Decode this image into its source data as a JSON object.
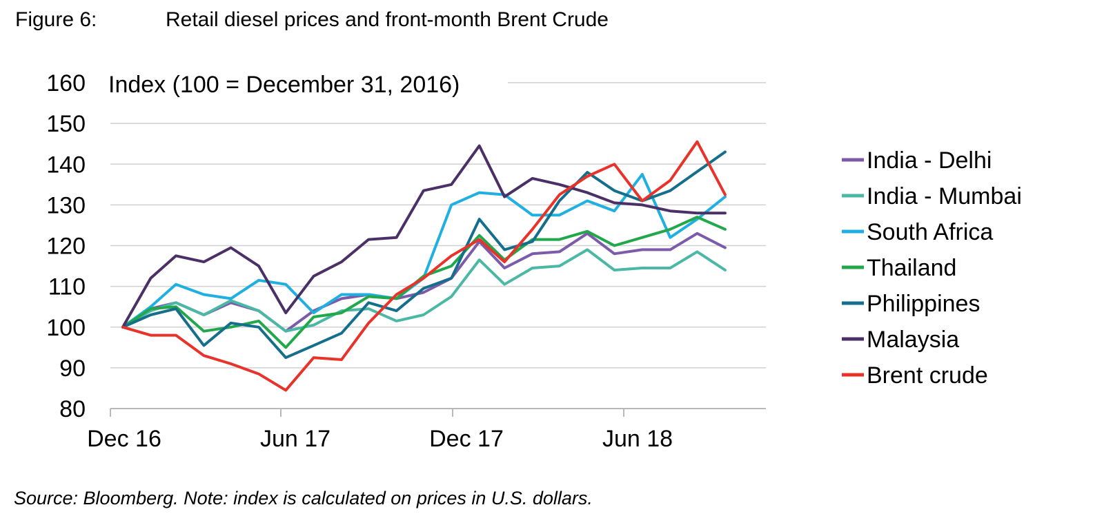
{
  "figure_label": "Figure 6:",
  "figure_title": "Retail diesel prices and front-month Brent Crude",
  "source_note": "Source: Bloomberg. Note: index is calculated on prices in U.S. dollars.",
  "chart_data": {
    "type": "line",
    "title": "Retail diesel prices and front-month Brent Crude",
    "ylabel": "Index (100 = December 31, 2016)",
    "xlabel": "",
    "ylim": [
      80,
      160
    ],
    "yticks": [
      80,
      90,
      100,
      110,
      120,
      130,
      140,
      150,
      160
    ],
    "xtick_labels": [
      "Dec 16",
      "Jun 17",
      "Dec 17",
      "Jun 18"
    ],
    "xtick_positions": [
      "2016-12-31",
      "2017-06-30",
      "2017-12-31",
      "2018-06-30"
    ],
    "x": [
      "2016-12-31",
      "2017-01-31",
      "2017-02-28",
      "2017-03-31",
      "2017-04-30",
      "2017-05-31",
      "2017-06-30",
      "2017-07-31",
      "2017-08-31",
      "2017-09-30",
      "2017-10-31",
      "2017-11-30",
      "2017-12-31",
      "2018-01-31",
      "2018-02-28",
      "2018-03-31",
      "2018-04-30",
      "2018-05-31",
      "2018-06-30",
      "2018-07-31",
      "2018-08-31",
      "2018-09-30",
      "2018-10-31",
      "2018-11-30"
    ],
    "grid": true,
    "legend_position": "right",
    "series": [
      {
        "name": "India - Delhi",
        "color": "#7B5BAA",
        "values": [
          100,
          104.5,
          106,
          103,
          106,
          104,
          99,
          104,
          107,
          108,
          107,
          108.5,
          112,
          121,
          114.5,
          118,
          118.5,
          123,
          118,
          119,
          119,
          123,
          119.5,
          null
        ]
      },
      {
        "name": "India - Mumbai",
        "color": "#4BB8A6",
        "values": [
          100,
          104,
          106,
          103,
          106.5,
          104,
          99,
          100.5,
          104,
          104.5,
          101.5,
          103,
          107.5,
          116.5,
          110.5,
          114.5,
          115,
          119,
          114,
          114.5,
          114.5,
          118.5,
          114,
          null
        ]
      },
      {
        "name": "South Africa",
        "color": "#1FAFE0",
        "values": [
          100,
          105,
          110.5,
          108,
          107,
          111.5,
          110.5,
          103.5,
          108,
          108,
          107,
          112,
          130,
          133,
          132.5,
          127.5,
          127.5,
          131,
          128.5,
          137.5,
          122,
          126.5,
          132,
          null
        ]
      },
      {
        "name": "Thailand",
        "color": "#22A84B",
        "values": [
          100,
          104.5,
          105,
          99,
          100,
          101.5,
          95,
          102.5,
          103.5,
          107.5,
          107,
          112.5,
          115,
          122.5,
          116.5,
          121.5,
          121.5,
          123.5,
          120,
          122,
          124,
          127,
          124,
          null
        ]
      },
      {
        "name": "Philippines",
        "color": "#146E8C",
        "values": [
          100,
          103,
          104.5,
          95.5,
          101,
          100,
          92.5,
          95.5,
          98.5,
          106,
          104,
          109.5,
          112,
          126.5,
          119,
          121,
          131,
          138,
          133.5,
          131,
          133.5,
          null,
          143,
          null
        ]
      },
      {
        "name": "Malaysia",
        "color": "#4A3066",
        "values": [
          100,
          112,
          117.5,
          116,
          119.5,
          115,
          103.5,
          112.5,
          116,
          121.5,
          122,
          133.5,
          135,
          144.5,
          132,
          136.5,
          135,
          133,
          130.5,
          130,
          128.5,
          128,
          128,
          null
        ]
      },
      {
        "name": "Brent crude",
        "color": "#E8332A",
        "values": [
          100,
          98,
          98,
          93,
          91,
          88.5,
          84.5,
          92.5,
          92,
          101,
          108,
          112,
          117.5,
          121.5,
          116,
          124,
          132.5,
          137,
          140,
          131,
          136,
          145.5,
          132.5,
          null
        ]
      }
    ]
  }
}
